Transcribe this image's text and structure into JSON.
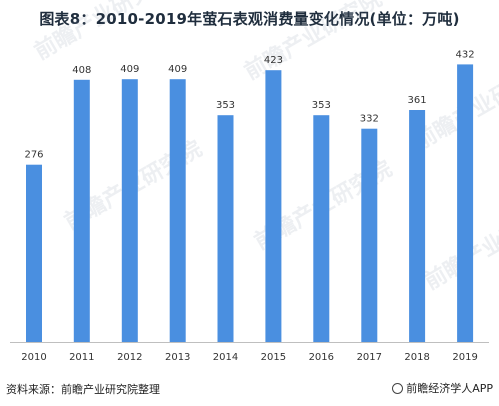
{
  "title": "图表8：2010-2019年萤石表观消费量变化情况(单位：万吨)",
  "footer": {
    "source": "资料来源：前瞻产业研究院整理",
    "brand": "前瞻经济学人APP"
  },
  "watermark": {
    "text": "前瞻产业研究院"
  },
  "colors": {
    "bar": "#4a8fe0",
    "axis": "#bfbfbf"
  },
  "chart_data": {
    "type": "bar",
    "title": "图表8：2010-2019年萤石表观消费量变化情况(单位：万吨)",
    "xlabel": "",
    "ylabel": "",
    "categories": [
      "2010",
      "2011",
      "2012",
      "2013",
      "2014",
      "2015",
      "2016",
      "2017",
      "2018",
      "2019"
    ],
    "values": [
      276,
      408,
      409,
      409,
      353,
      423,
      353,
      332,
      361,
      432
    ],
    "ylim": [
      0,
      470
    ],
    "grid": false,
    "legend": "none",
    "data_labels": true
  }
}
